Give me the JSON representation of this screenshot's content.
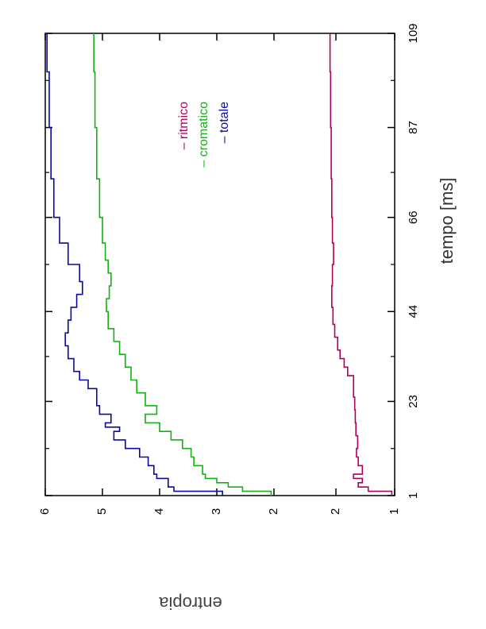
{
  "chart_data": {
    "type": "line",
    "orientation": "rotated-90-clockwise",
    "xlabel": "tempo [ms]",
    "ylabel": "entropia",
    "x_ticks": [
      1,
      23,
      44,
      66,
      87,
      109
    ],
    "xlim": [
      1,
      109
    ],
    "y_tick_labels": [
      "1",
      "2",
      "2",
      "3",
      "4",
      "5",
      "6"
    ],
    "legend_position": "top-center",
    "series": [
      {
        "name": "ritmico",
        "color": "#b0005f",
        "x": [
          1,
          2,
          3,
          4,
          5,
          6,
          8,
          10,
          12,
          15,
          18,
          21,
          24,
          27,
          29,
          31,
          33,
          35,
          38,
          41,
          45,
          50,
          55,
          60,
          66,
          75,
          87,
          100,
          109
        ],
        "y": [
          1.05,
          1.45,
          1.62,
          1.55,
          1.7,
          1.55,
          1.62,
          1.65,
          1.63,
          1.66,
          1.67,
          1.68,
          1.7,
          1.7,
          1.8,
          1.86,
          1.93,
          1.97,
          2.02,
          2.05,
          2.07,
          2.06,
          2.04,
          2.06,
          2.07,
          2.08,
          2.09,
          2.1,
          2.1
        ]
      },
      {
        "name": "cromatico",
        "color": "#14b014",
        "x": [
          1,
          2,
          3,
          4,
          5,
          6,
          8,
          10,
          12,
          14,
          16,
          18,
          20,
          22,
          25,
          28,
          31,
          34,
          37,
          40,
          44,
          47,
          50,
          53,
          56,
          60,
          66,
          75,
          87,
          100,
          109
        ],
        "y": [
          2.05,
          2.55,
          2.8,
          3.0,
          3.2,
          3.25,
          3.4,
          3.45,
          3.6,
          3.8,
          4.0,
          4.25,
          4.05,
          4.25,
          4.4,
          4.5,
          4.6,
          4.7,
          4.8,
          4.9,
          4.93,
          4.88,
          4.85,
          4.9,
          4.95,
          5.0,
          5.05,
          5.1,
          5.13,
          5.15,
          5.15
        ]
      },
      {
        "name": "totale",
        "color": "#0a0aa0",
        "x": [
          1,
          2,
          3,
          4,
          5,
          6,
          8,
          10,
          12,
          14,
          16,
          17,
          18,
          20,
          22,
          24,
          26,
          28,
          30,
          33,
          36,
          39,
          42,
          45,
          48,
          51,
          55,
          60,
          66,
          75,
          87,
          100,
          109
        ],
        "y": [
          2.9,
          3.75,
          3.85,
          3.85,
          4.05,
          4.1,
          4.2,
          4.35,
          4.6,
          4.8,
          4.7,
          4.95,
          4.85,
          5.05,
          5.1,
          5.1,
          5.25,
          5.4,
          5.5,
          5.6,
          5.65,
          5.6,
          5.55,
          5.45,
          5.35,
          5.4,
          5.6,
          5.75,
          5.85,
          5.9,
          5.93,
          5.97,
          6.0
        ]
      }
    ]
  }
}
